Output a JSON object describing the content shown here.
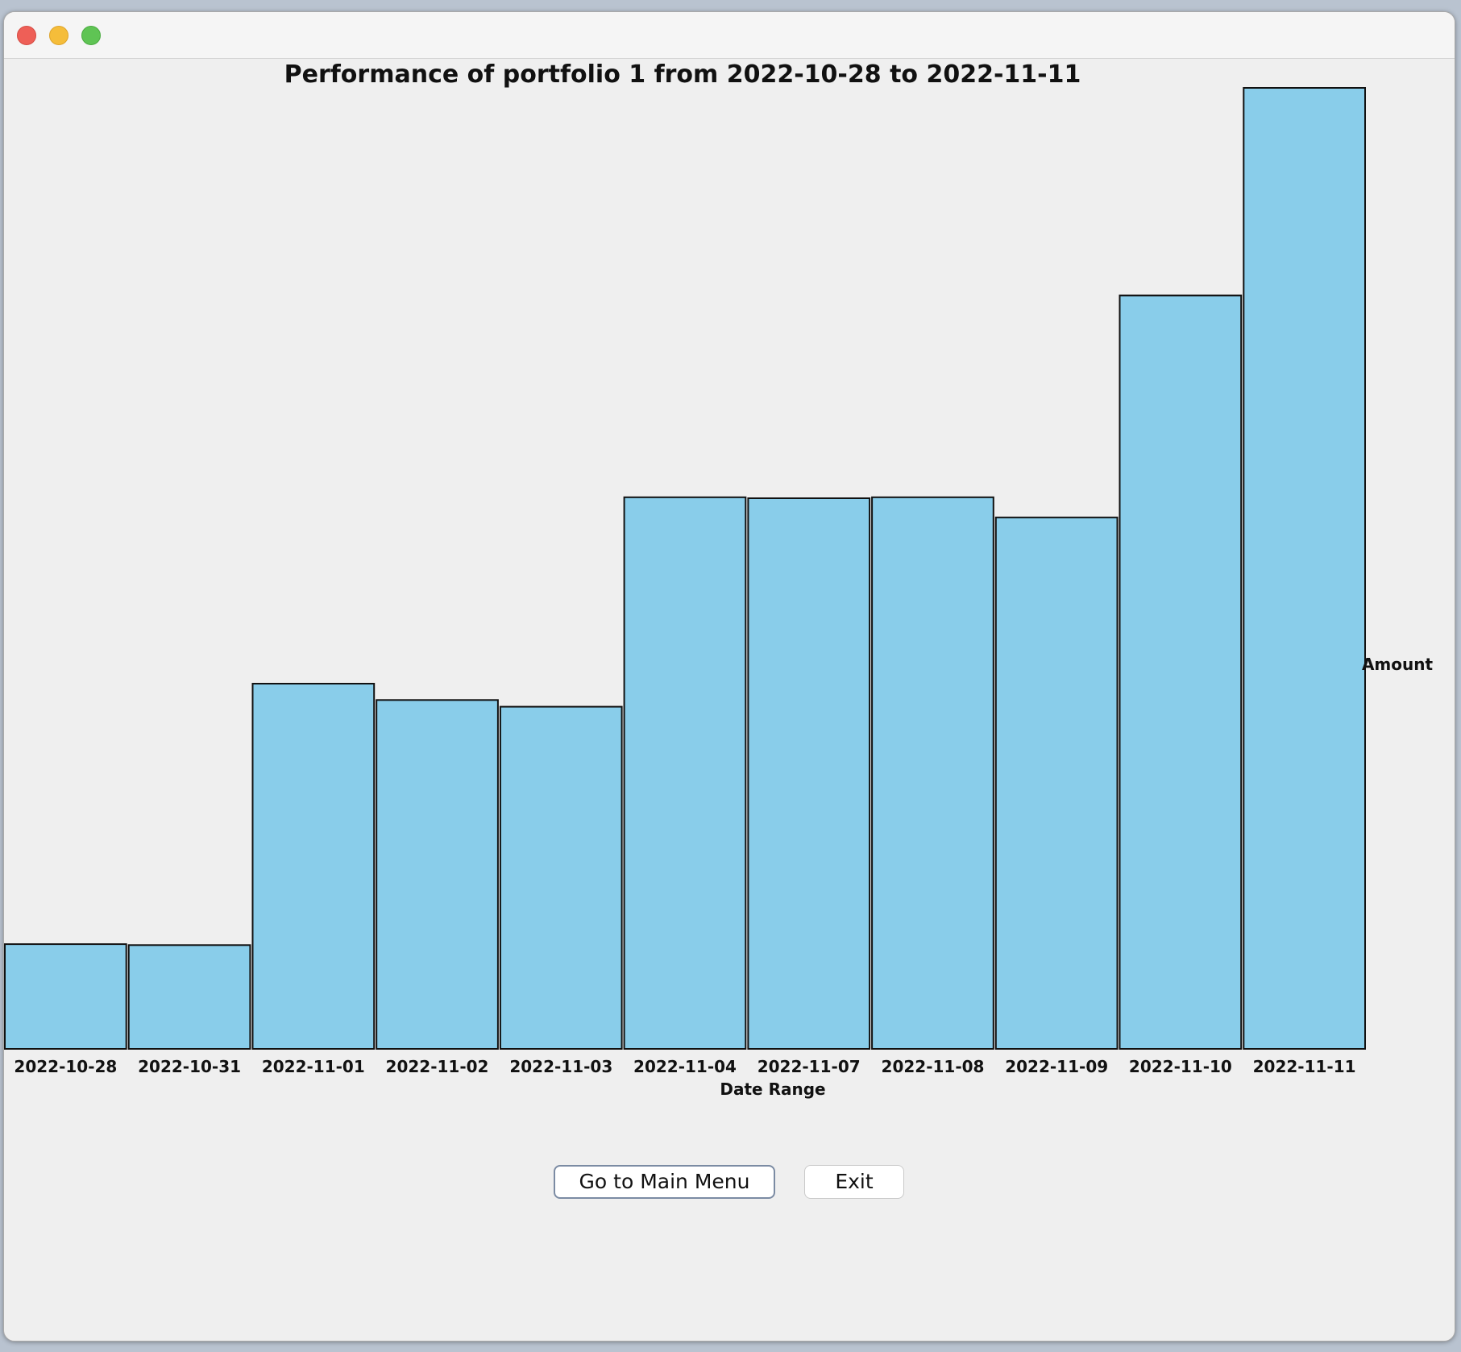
{
  "window": {
    "controls": [
      "close",
      "minimize",
      "zoom"
    ]
  },
  "chart_data": {
    "type": "bar",
    "title": "Performance of portfolio 1 from 2022-10-28 to 2022-11-11",
    "xlabel": "Date Range",
    "ylabel": "Amount",
    "categories": [
      "2022-10-28",
      "2022-10-31",
      "2022-11-01",
      "2022-11-02",
      "2022-11-03",
      "2022-11-04",
      "2022-11-07",
      "2022-11-08",
      "2022-11-09",
      "2022-11-10",
      "2022-11-11"
    ],
    "values": [
      10.9,
      10.8,
      38.0,
      36.3,
      35.6,
      57.4,
      57.3,
      57.4,
      55.3,
      78.4,
      100.0
    ],
    "ylim": [
      0,
      100
    ],
    "grid": false,
    "legend": "none",
    "bar_color": "#89cdea",
    "bar_edge_color": "#111111"
  },
  "buttons": {
    "main_menu_label": "Go to Main Menu",
    "exit_label": "Exit"
  }
}
